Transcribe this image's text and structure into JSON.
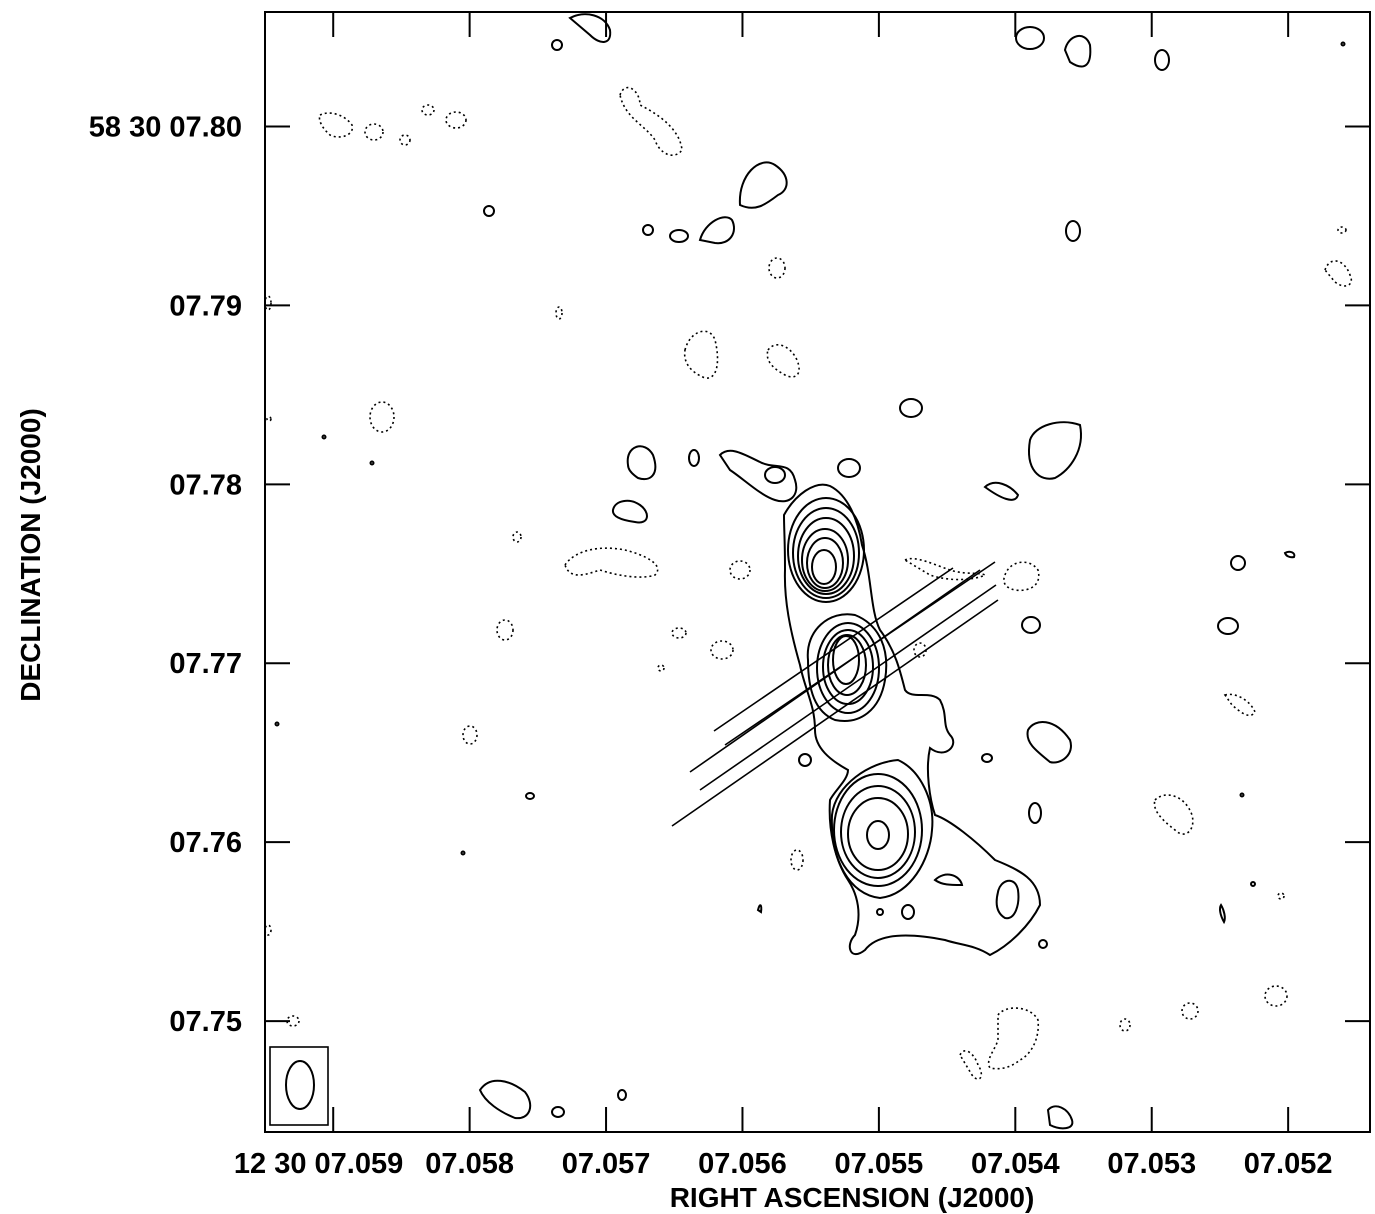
{
  "chart_data": {
    "type": "contour",
    "xlabel": "RIGHT ASCENSION (J2000)",
    "ylabel": "DECLINATION (J2000)",
    "x_ticks": [
      {
        "value": "12 30 07.059",
        "label": "12 30 07.059"
      },
      {
        "value": "12 30 07.058",
        "label": "07.058"
      },
      {
        "value": "12 30 07.057",
        "label": "07.057"
      },
      {
        "value": "12 30 07.056",
        "label": "07.056"
      },
      {
        "value": "12 30 07.055",
        "label": "07.055"
      },
      {
        "value": "12 30 07.054",
        "label": "07.054"
      },
      {
        "value": "12 30 07.053",
        "label": "07.053"
      },
      {
        "value": "12 30 07.052",
        "label": "07.052"
      }
    ],
    "y_ticks": [
      {
        "value": "58 30 07.80",
        "label": "58 30 07.80"
      },
      {
        "value": "58 30 07.79",
        "label": "07.79"
      },
      {
        "value": "58 30 07.78",
        "label": "07.78"
      },
      {
        "value": "58 30 07.77",
        "label": "07.77"
      },
      {
        "value": "58 30 07.76",
        "label": "07.76"
      },
      {
        "value": "58 30 07.75",
        "label": "07.75"
      }
    ],
    "x_range_seconds": [
      7.0595,
      7.0514
    ],
    "y_range_arcsec": [
      7.7438,
      7.8064
    ],
    "components": [
      {
        "name": "north-peak",
        "ra_s": 7.05535,
        "dec_s": 7.773,
        "levels": 8
      },
      {
        "name": "central-peak",
        "ra_s": 7.05522,
        "dec_s": 7.7675,
        "levels": 6
      },
      {
        "name": "south-peak",
        "ra_s": 7.055,
        "dec_s": 7.7576,
        "levels": 5
      }
    ],
    "beam": {
      "position": "bottom-left"
    }
  }
}
